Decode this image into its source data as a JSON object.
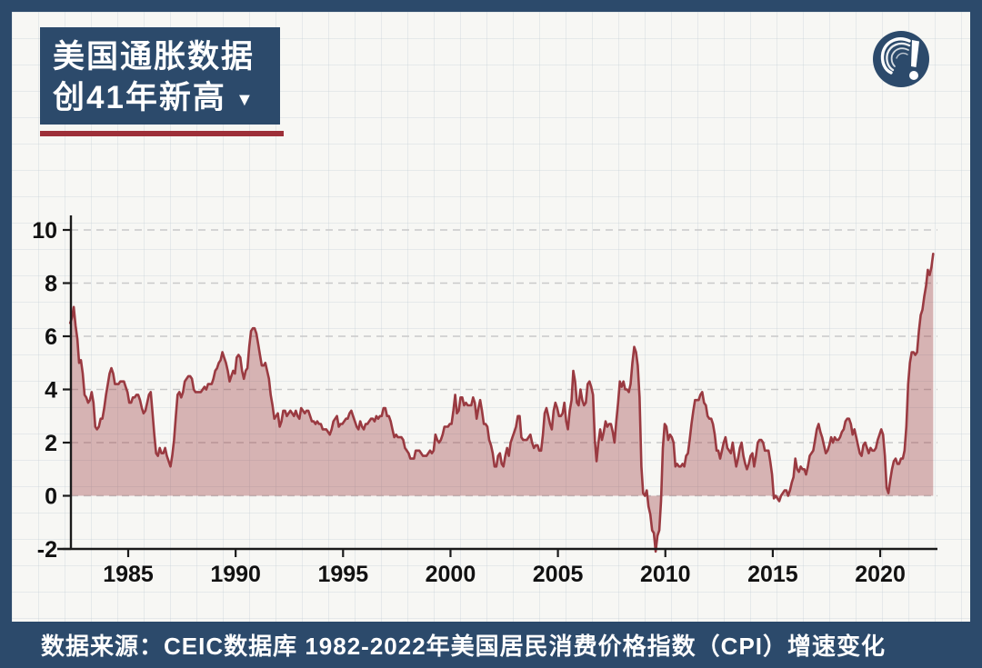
{
  "theme": {
    "navy": "#2c4a6b",
    "line_red": "#9a3a41",
    "red_underline": "#9d2f38",
    "bg": "#f7f7f4",
    "grid_faint": "rgba(196,206,214,0.35)",
    "axis_color": "#1a1a1a",
    "label_color": "#111111",
    "white": "#ffffff",
    "dashed_grid": "#c9c9c9"
  },
  "header": {
    "title_line1": "美国通胀数据",
    "title_line2": "创41年新高",
    "dropdown_icon": "▼",
    "logo_icon": "swirl-exclamation-logo"
  },
  "footer": {
    "text": "数据来源：CEIC数据库 1982-2022年美国居民消费价格指数（CPI）增速变化"
  },
  "chart_data": {
    "type": "area",
    "title": "",
    "xlabel": "",
    "ylabel": "",
    "unit": "%",
    "x_start_year": 1982.3,
    "x_step_years": 0.08333,
    "xlim": [
      1982.3,
      2022.6
    ],
    "ylim": [
      -2,
      10.8
    ],
    "x_ticks": [
      1985,
      1990,
      1995,
      2000,
      2005,
      2010,
      2015,
      2020
    ],
    "y_ticks": [
      -2,
      0,
      2,
      4,
      6,
      8,
      10
    ],
    "grid": "dashed-horizontal",
    "legend": "none",
    "line_color": "#9a3a41",
    "fill_color": "#9a3a41",
    "fill_opacity": 0.36,
    "series": [
      {
        "name": "US CPI YoY %",
        "values": [
          6.5,
          6.7,
          7.1,
          6.4,
          5.9,
          5.0,
          5.1,
          4.6,
          3.8,
          3.7,
          3.5,
          3.6,
          3.9,
          3.5,
          2.6,
          2.5,
          2.6,
          2.9,
          2.9,
          3.3,
          3.8,
          4.2,
          4.6,
          4.8,
          4.6,
          4.2,
          4.2,
          4.2,
          4.3,
          4.3,
          4.3,
          4.1,
          3.9,
          3.5,
          3.5,
          3.7,
          3.7,
          3.8,
          3.8,
          3.6,
          3.3,
          3.1,
          3.2,
          3.5,
          3.8,
          3.9,
          3.1,
          2.3,
          1.6,
          1.5,
          1.8,
          1.6,
          1.6,
          1.8,
          1.5,
          1.3,
          1.1,
          1.5,
          2.1,
          3.0,
          3.8,
          3.9,
          3.7,
          3.9,
          4.3,
          4.4,
          4.5,
          4.5,
          4.4,
          4.0,
          3.9,
          3.9,
          3.9,
          3.9,
          4.0,
          4.1,
          4.0,
          4.2,
          4.2,
          4.2,
          4.4,
          4.7,
          4.8,
          5.0,
          5.1,
          5.4,
          5.2,
          5.0,
          4.7,
          4.3,
          4.5,
          4.7,
          4.6,
          5.2,
          5.3,
          5.2,
          4.7,
          4.4,
          4.7,
          4.8,
          5.6,
          6.2,
          6.3,
          6.3,
          6.1,
          5.7,
          5.3,
          4.9,
          4.9,
          5.0,
          4.7,
          4.4,
          3.8,
          3.4,
          2.9,
          3.0,
          3.1,
          2.6,
          2.8,
          3.2,
          3.2,
          3.0,
          3.1,
          3.2,
          3.1,
          3.0,
          3.2,
          3.0,
          2.9,
          3.3,
          3.2,
          3.1,
          3.2,
          3.2,
          3.0,
          2.8,
          2.8,
          2.7,
          2.8,
          2.7,
          2.7,
          2.5,
          2.5,
          2.5,
          2.4,
          2.3,
          2.5,
          2.8,
          2.9,
          3.0,
          2.6,
          2.7,
          2.7,
          2.8,
          2.9,
          2.9,
          3.1,
          3.2,
          3.0,
          2.8,
          2.6,
          2.5,
          2.8,
          2.6,
          2.5,
          2.7,
          2.7,
          2.8,
          2.9,
          2.9,
          2.8,
          3.0,
          2.9,
          3.0,
          3.0,
          3.3,
          3.3,
          3.0,
          3.0,
          2.8,
          2.5,
          2.2,
          2.3,
          2.2,
          2.2,
          2.2,
          2.1,
          1.8,
          1.7,
          1.6,
          1.4,
          1.4,
          1.4,
          1.7,
          1.7,
          1.7,
          1.6,
          1.5,
          1.5,
          1.5,
          1.6,
          1.7,
          1.6,
          1.7,
          2.3,
          2.1,
          2.0,
          2.1,
          2.3,
          2.6,
          2.6,
          2.6,
          2.7,
          2.7,
          3.2,
          3.8,
          3.1,
          3.2,
          3.7,
          3.7,
          3.4,
          3.5,
          3.4,
          3.4,
          3.4,
          3.7,
          3.5,
          2.9,
          3.3,
          3.6,
          3.2,
          2.7,
          2.7,
          2.6,
          2.1,
          1.9,
          1.6,
          1.1,
          1.1,
          1.5,
          1.6,
          1.2,
          1.1,
          1.5,
          1.8,
          1.5,
          2.0,
          2.2,
          2.4,
          2.6,
          3.0,
          3.0,
          2.2,
          2.1,
          2.1,
          2.1,
          2.2,
          2.3,
          2.0,
          1.8,
          1.9,
          1.9,
          1.7,
          1.7,
          2.3,
          3.1,
          3.3,
          3.0,
          2.7,
          2.5,
          3.2,
          3.5,
          3.3,
          3.0,
          3.0,
          3.1,
          3.5,
          2.8,
          2.5,
          3.2,
          3.6,
          4.7,
          4.3,
          3.5,
          3.4,
          4.0,
          3.6,
          3.4,
          3.5,
          4.2,
          4.3,
          4.1,
          3.8,
          2.1,
          1.3,
          2.0,
          2.5,
          2.1,
          2.4,
          2.8,
          2.6,
          2.7,
          2.7,
          2.4,
          2.0,
          2.8,
          3.5,
          4.3,
          4.1,
          4.3,
          4.0,
          4.0,
          3.9,
          4.2,
          5.0,
          5.6,
          5.4,
          4.9,
          3.7,
          1.1,
          0.1,
          0.0,
          0.2,
          -0.4,
          -0.7,
          -1.3,
          -1.4,
          -2.1,
          -1.5,
          -1.3,
          -0.2,
          1.8,
          2.7,
          2.6,
          2.1,
          2.3,
          2.2,
          2.0,
          1.1,
          1.2,
          1.1,
          1.1,
          1.2,
          1.1,
          1.5,
          1.6,
          2.1,
          2.7,
          3.2,
          3.6,
          3.6,
          3.6,
          3.8,
          3.9,
          3.5,
          3.4,
          3.0,
          2.9,
          2.9,
          2.7,
          2.3,
          1.7,
          1.7,
          1.4,
          1.7,
          2.0,
          2.2,
          1.8,
          1.7,
          1.6,
          2.0,
          1.5,
          1.1,
          1.4,
          1.8,
          2.0,
          1.5,
          1.2,
          1.0,
          1.2,
          1.5,
          1.6,
          1.1,
          1.5,
          2.0,
          2.1,
          2.1,
          2.0,
          1.7,
          1.7,
          1.7,
          1.3,
          0.8,
          -0.1,
          0.0,
          -0.1,
          -0.2,
          0.0,
          0.1,
          0.2,
          0.2,
          0.0,
          0.2,
          0.5,
          0.7,
          1.4,
          1.0,
          0.9,
          1.1,
          1.0,
          1.0,
          0.8,
          1.1,
          1.5,
          1.6,
          1.7,
          2.1,
          2.5,
          2.7,
          2.4,
          2.2,
          1.9,
          1.6,
          1.7,
          1.9,
          2.2,
          2.0,
          2.2,
          2.1,
          2.1,
          2.2,
          2.4,
          2.5,
          2.8,
          2.9,
          2.9,
          2.7,
          2.3,
          2.5,
          2.2,
          1.9,
          1.6,
          1.5,
          1.9,
          2.0,
          1.8,
          1.6,
          1.8,
          1.7,
          1.7,
          1.8,
          2.1,
          2.3,
          2.5,
          2.3,
          1.5,
          0.3,
          0.1,
          0.6,
          1.0,
          1.3,
          1.4,
          1.2,
          1.2,
          1.4,
          1.4,
          1.7,
          2.6,
          4.2,
          5.0,
          5.4,
          5.4,
          5.3,
          5.4,
          6.2,
          6.8,
          7.0,
          7.5,
          7.9,
          8.5,
          8.3,
          8.6,
          9.1
        ]
      }
    ]
  }
}
